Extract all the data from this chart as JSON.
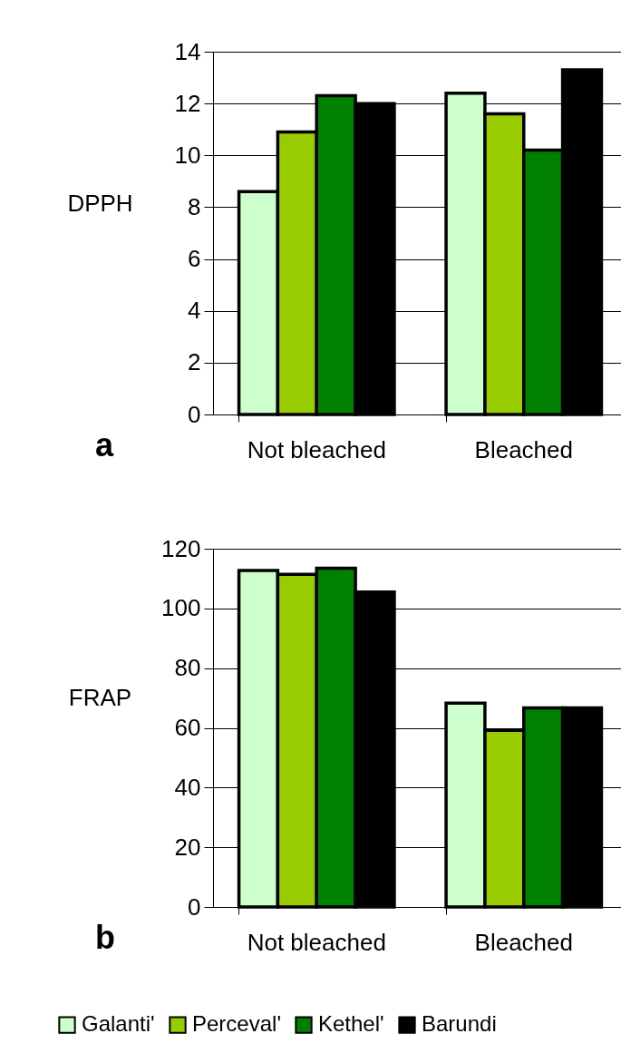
{
  "chart_data": [
    {
      "type": "bar",
      "ylabel": "DPPH",
      "categories": [
        "Not bleached",
        "Bleached"
      ],
      "ylim": [
        0,
        14
      ],
      "yticks": [
        0,
        2,
        4,
        6,
        8,
        10,
        12,
        14
      ],
      "grid": "y",
      "annotations": [
        "a"
      ],
      "series": [
        {
          "color": "#ccffcc",
          "values": [
            8.6,
            12.4
          ]
        },
        {
          "color": "#99cc00",
          "values": [
            10.9,
            11.6
          ]
        },
        {
          "color": "#008000",
          "values": [
            12.3,
            10.2
          ]
        },
        {
          "color": "#000000",
          "values": [
            12.0,
            13.3
          ]
        }
      ]
    },
    {
      "type": "bar",
      "ylabel": "FRAP",
      "categories": [
        "Not bleached",
        "Bleached"
      ],
      "ylim": [
        0,
        120
      ],
      "yticks": [
        0,
        20,
        40,
        60,
        80,
        100,
        120
      ],
      "grid": "y",
      "legend": "bottom",
      "annotations": [
        "b"
      ],
      "series": [
        {
          "name": "Galanti'",
          "color": "#ccffcc",
          "values": [
            112.7,
            68.3
          ]
        },
        {
          "name": "Perceval'",
          "color": "#99cc00",
          "values": [
            111.4,
            59.2
          ]
        },
        {
          "name": "Kethel'",
          "color": "#008000",
          "values": [
            113.5,
            66.7
          ]
        },
        {
          "name": "Barundi",
          "color": "#000000",
          "values": [
            105.5,
            66.7
          ]
        }
      ]
    }
  ]
}
